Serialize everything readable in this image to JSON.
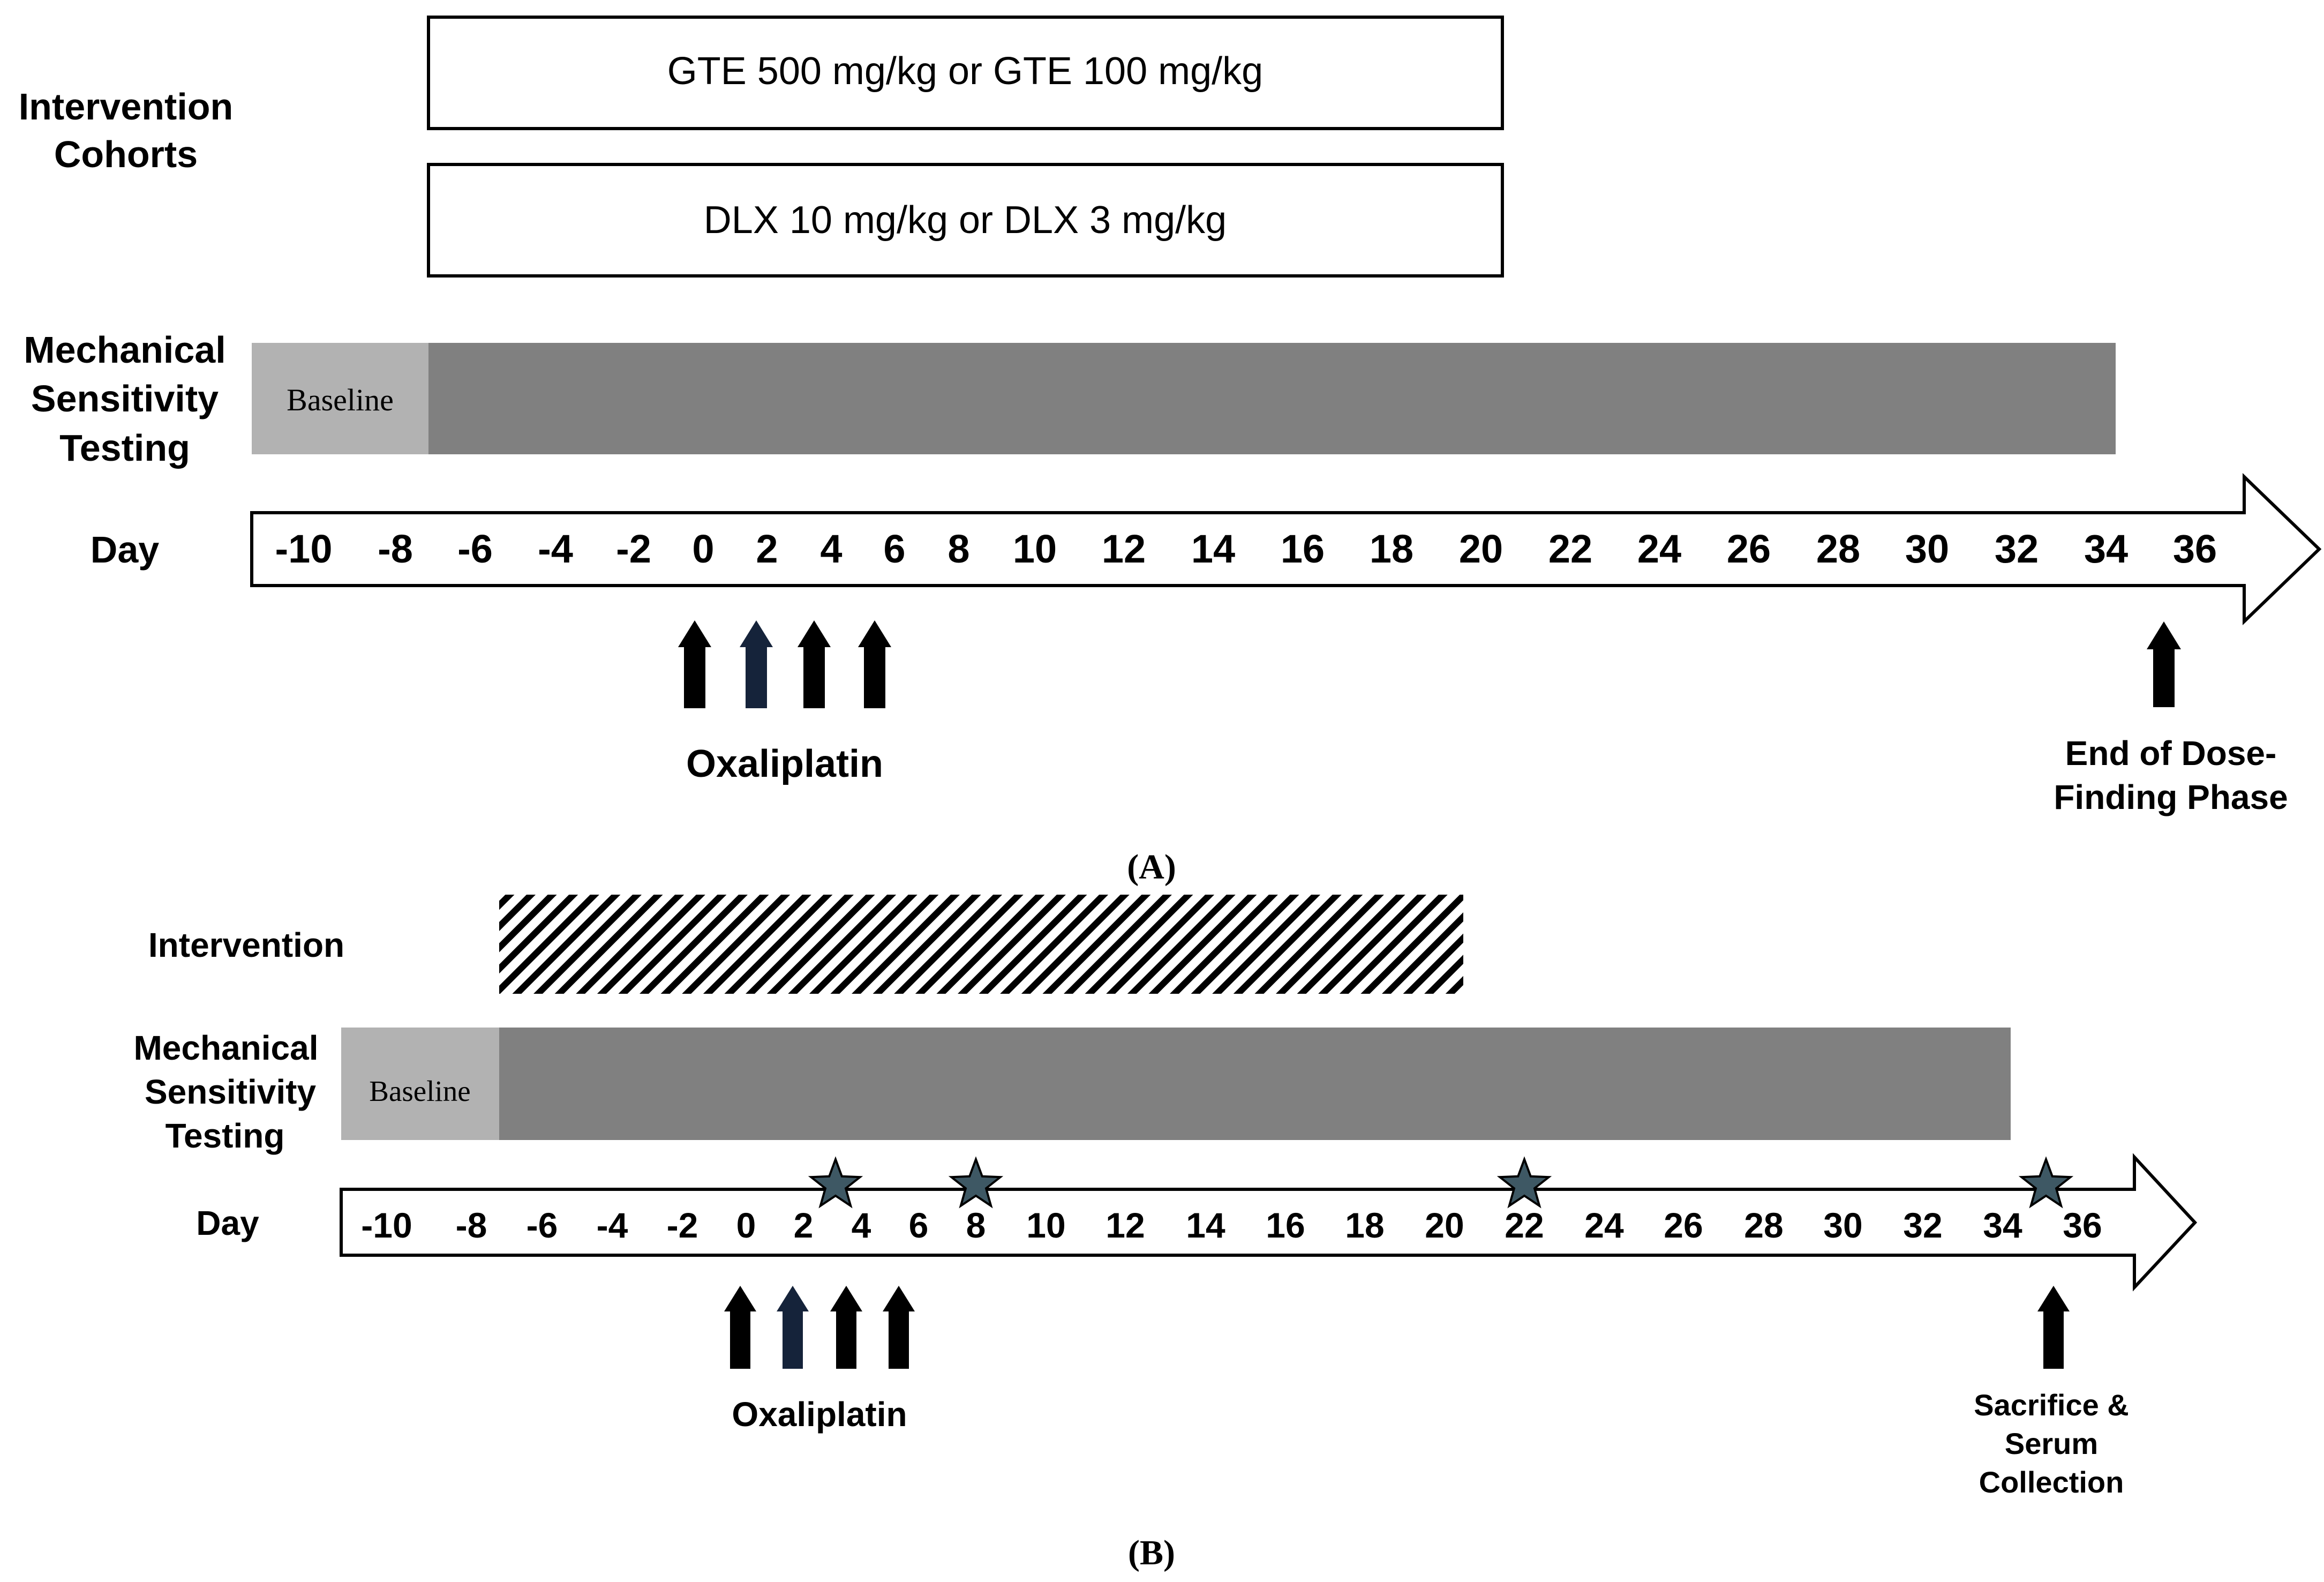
{
  "panel_a": {
    "caption": "(A)",
    "cohorts_label": [
      "Intervention",
      "Cohorts"
    ],
    "cohort_boxes": [
      "GTE 500 mg/kg or GTE 100 mg/kg",
      "DLX 10 mg/kg or DLX 3 mg/kg"
    ],
    "mst_label": [
      "Mechanical",
      "Sensitivity",
      "Testing"
    ],
    "baseline_label": "Baseline",
    "day_label": "Day",
    "days": [
      "-10",
      "-8",
      "-6",
      "-4",
      "-2",
      "0",
      "2",
      "4",
      "6",
      "8",
      "10",
      "12",
      "14",
      "16",
      "18",
      "20",
      "22",
      "24",
      "26",
      "28",
      "30",
      "32",
      "34",
      "36"
    ],
    "oxaliplatin_label": "Oxaliplatin",
    "end_label": [
      "End of Dose-",
      "Finding Phase"
    ]
  },
  "panel_b": {
    "caption": "(B)",
    "intervention_label": "Intervention",
    "mst_label": [
      "Mechanical",
      "Sensitivity",
      "Testing"
    ],
    "baseline_label": "Baseline",
    "day_label": "Day",
    "days": [
      "-10",
      "-8",
      "-6",
      "-4",
      "-2",
      "0",
      "2",
      "4",
      "6",
      "8",
      "10",
      "12",
      "14",
      "16",
      "18",
      "20",
      "22",
      "24",
      "26",
      "28",
      "30",
      "32",
      "34",
      "36"
    ],
    "oxaliplatin_label": "Oxaliplatin",
    "end_label": [
      "Sacrifice &",
      "Serum",
      "Collection"
    ]
  },
  "colors": {
    "baseline_fill": "#b2b2b2",
    "testing_fill": "#808080",
    "star_fill": "#3e5864",
    "arrow_fill": "#000000",
    "outline": "#000000"
  }
}
